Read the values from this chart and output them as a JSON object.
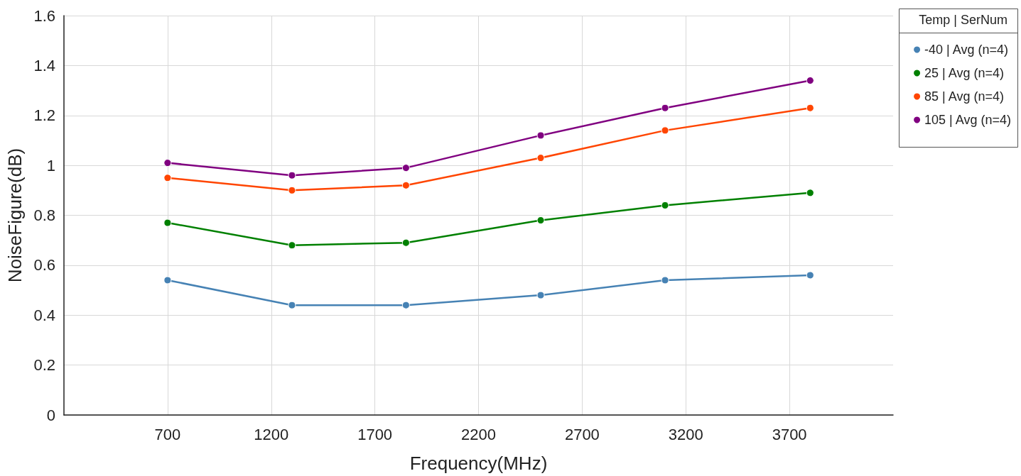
{
  "chart_data": {
    "type": "line",
    "xlabel": "Frequency(MHz)",
    "ylabel": "NoiseFigure(dB)",
    "legend_title": "Temp | SerNum",
    "x": [
      700,
      1300,
      1850,
      2500,
      3100,
      3800
    ],
    "series": [
      {
        "name": "-40 | Avg (n=4)",
        "color": "#4682b4",
        "values": [
          0.54,
          0.44,
          0.44,
          0.48,
          0.54,
          0.56
        ]
      },
      {
        "name": "25 | Avg (n=4)",
        "color": "#008000",
        "values": [
          0.77,
          0.68,
          0.69,
          0.78,
          0.84,
          0.89
        ]
      },
      {
        "name": "85 | Avg (n=4)",
        "color": "#ff4500",
        "values": [
          0.95,
          0.9,
          0.92,
          1.03,
          1.14,
          1.23
        ]
      },
      {
        "name": "105 | Avg (n=4)",
        "color": "#800080",
        "values": [
          1.01,
          0.96,
          0.99,
          1.12,
          1.23,
          1.34
        ]
      }
    ],
    "xlim": [
      200,
      4200
    ],
    "xticks": [
      700,
      1200,
      1700,
      2200,
      2700,
      3200,
      3700
    ],
    "ylim": [
      0,
      1.6
    ],
    "yticks": [
      0,
      0.2,
      0.4,
      0.6,
      0.8,
      1,
      1.2,
      1.4,
      1.6
    ],
    "grid": true,
    "legend": "right",
    "marker": "circle",
    "line_style": "solid"
  }
}
